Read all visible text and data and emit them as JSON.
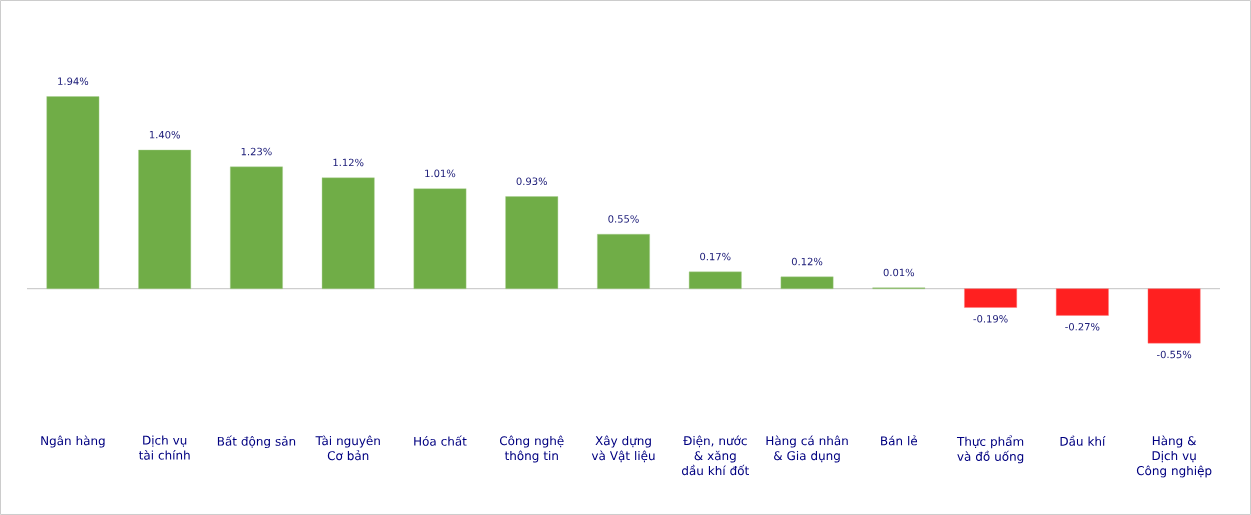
{
  "chart_data": {
    "type": "bar",
    "categories": [
      "Ngân hàng",
      "Dịch vụ tài chính",
      "Bất động sản",
      "Tài nguyên Cơ bản",
      "Hóa chất",
      "Công nghệ thông tin",
      "Xây dựng và Vật liệu",
      "Điện, nước & xăng dầu khí đốt",
      "Hàng cá nhân & Gia dụng",
      "Bán lẻ",
      "Thực phẩm và đồ uống",
      "Dầu khí",
      "Hàng & Dịch vụ Công nghiệp"
    ],
    "values": [
      1.94,
      1.4,
      1.23,
      1.12,
      1.01,
      0.93,
      0.55,
      0.17,
      0.12,
      0.01,
      -0.19,
      -0.27,
      -0.55
    ],
    "value_labels": [
      "1.94%",
      "1.40%",
      "1.23%",
      "1.12%",
      "1.01%",
      "0.93%",
      "0.55%",
      "0.17%",
      "0.12%",
      "0.01%",
      "-0.19%",
      "-0.27%",
      "-0.55%"
    ],
    "colors": [
      "#70ad47",
      "#70ad47",
      "#70ad47",
      "#70ad47",
      "#70ad47",
      "#70ad47",
      "#70ad47",
      "#70ad47",
      "#70ad47",
      "#70ad47",
      "#ff2020",
      "#ff2020",
      "#ff2020"
    ]
  }
}
